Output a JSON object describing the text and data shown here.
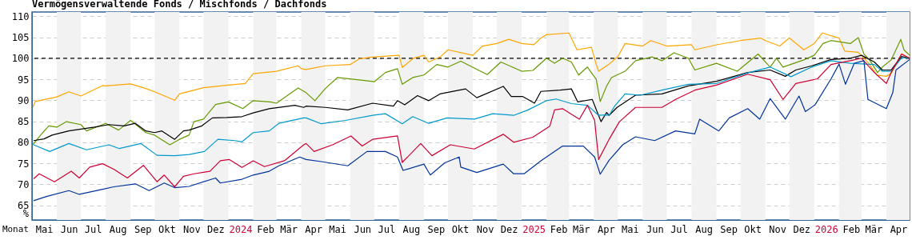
{
  "chart_data": {
    "type": "line",
    "title": "Vermögensverwaltende Fonds / Mischfonds / Dachfonds",
    "xlabel": "Monat",
    "ylabel": "%",
    "xlim": [
      "2023-05-01",
      "2026-04-30"
    ],
    "ylim": [
      61.5,
      111
    ],
    "yticks": [
      65,
      70,
      75,
      80,
      85,
      90,
      95,
      100,
      105,
      110
    ],
    "xticks": [
      {
        "value": "2023-05-16",
        "label": "Mai"
      },
      {
        "value": "2023-06-16",
        "label": "Jun"
      },
      {
        "value": "2023-07-16",
        "label": "Jul"
      },
      {
        "value": "2023-08-16",
        "label": "Aug"
      },
      {
        "value": "2023-09-16",
        "label": "Sep"
      },
      {
        "value": "2023-10-16",
        "label": "Okt"
      },
      {
        "value": "2023-11-16",
        "label": "Nov"
      },
      {
        "value": "2023-12-16",
        "label": "Dez"
      },
      {
        "value": "2024-01-16",
        "label": "2024"
      },
      {
        "value": "2024-02-16",
        "label": "Feb"
      },
      {
        "value": "2024-03-16",
        "label": "Mär"
      },
      {
        "value": "2024-04-16",
        "label": "Apr"
      },
      {
        "value": "2024-05-16",
        "label": "Mai"
      },
      {
        "value": "2024-06-16",
        "label": "Jun"
      },
      {
        "value": "2024-07-16",
        "label": "Jul"
      },
      {
        "value": "2024-08-16",
        "label": "Aug"
      },
      {
        "value": "2024-09-16",
        "label": "Sep"
      },
      {
        "value": "2024-10-16",
        "label": "Okt"
      },
      {
        "value": "2024-11-16",
        "label": "Nov"
      },
      {
        "value": "2024-12-16",
        "label": "Dez"
      },
      {
        "value": "2025-01-16",
        "label": "2025"
      },
      {
        "value": "2025-02-16",
        "label": "Feb"
      },
      {
        "value": "2025-03-16",
        "label": "Mär"
      },
      {
        "value": "2025-04-16",
        "label": "Apr"
      },
      {
        "value": "2025-05-16",
        "label": "Mai"
      },
      {
        "value": "2025-06-16",
        "label": "Jun"
      },
      {
        "value": "2025-07-16",
        "label": "Jul"
      },
      {
        "value": "2025-08-16",
        "label": "Aug"
      },
      {
        "value": "2025-09-16",
        "label": "Sep"
      },
      {
        "value": "2025-10-16",
        "label": "Okt"
      },
      {
        "value": "2025-11-16",
        "label": "Nov"
      },
      {
        "value": "2025-12-16",
        "label": "Dez"
      },
      {
        "value": "2026-01-16",
        "label": "2026"
      },
      {
        "value": "2026-02-16",
        "label": "Feb"
      },
      {
        "value": "2026-03-16",
        "label": "Mär"
      },
      {
        "value": "2026-04-16",
        "label": "Apr"
      }
    ],
    "grid": "y",
    "legend": false,
    "marker": "none",
    "line_style": "solid",
    "ref_lines": [
      {
        "axis": "y",
        "value": 100,
        "color": "#000000",
        "line_style": "dashed"
      }
    ],
    "bands": [
      {
        "axis": "x",
        "from": "2023-06-01",
        "to": "2023-07-01",
        "color": "#f2f2f2"
      },
      {
        "axis": "x",
        "from": "2023-08-01",
        "to": "2023-09-01",
        "color": "#f2f2f2"
      },
      {
        "axis": "x",
        "from": "2023-10-01",
        "to": "2023-11-01",
        "color": "#f2f2f2"
      },
      {
        "axis": "x",
        "from": "2023-12-01",
        "to": "2024-01-01",
        "color": "#f2f2f2"
      },
      {
        "axis": "x",
        "from": "2024-02-01",
        "to": "2024-03-01",
        "color": "#f2f2f2"
      },
      {
        "axis": "x",
        "from": "2024-04-01",
        "to": "2024-05-01",
        "color": "#f2f2f2"
      },
      {
        "axis": "x",
        "from": "2024-06-01",
        "to": "2024-07-01",
        "color": "#f2f2f2"
      },
      {
        "axis": "x",
        "from": "2024-08-01",
        "to": "2024-09-01",
        "color": "#f2f2f2"
      },
      {
        "axis": "x",
        "from": "2024-10-01",
        "to": "2024-11-01",
        "color": "#f2f2f2"
      },
      {
        "axis": "x",
        "from": "2024-12-01",
        "to": "2025-01-01",
        "color": "#f2f2f2"
      },
      {
        "axis": "x",
        "from": "2025-02-01",
        "to": "2025-03-01",
        "color": "#f2f2f2"
      },
      {
        "axis": "x",
        "from": "2025-04-01",
        "to": "2025-05-01",
        "color": "#f2f2f2"
      },
      {
        "axis": "x",
        "from": "2025-06-01",
        "to": "2025-07-01",
        "color": "#f2f2f2"
      },
      {
        "axis": "x",
        "from": "2025-08-01",
        "to": "2025-09-01",
        "color": "#f2f2f2"
      },
      {
        "axis": "x",
        "from": "2025-10-01",
        "to": "2025-11-01",
        "color": "#f2f2f2"
      },
      {
        "axis": "x",
        "from": "2025-12-01",
        "to": "2026-01-01",
        "color": "#f2f2f2"
      },
      {
        "axis": "x",
        "from": "2026-02-01",
        "to": "2026-03-01",
        "color": "#f2f2f2"
      },
      {
        "axis": "x",
        "from": "2026-04-01",
        "to": "2026-04-30",
        "color": "#f2f2f2"
      }
    ],
    "series": [
      {
        "color": "#ffa500",
        "x": [
          "2023-05-02",
          "2023-05-05",
          "2023-06-01",
          "2023-06-16",
          "2023-07-01",
          "2023-07-28",
          "2023-08-01",
          "2023-09-01",
          "2023-09-20",
          "2023-10-01",
          "2023-10-26",
          "2023-11-01",
          "2023-12-01",
          "2024-01-01",
          "2024-01-22",
          "2024-02-01",
          "2024-03-01",
          "2024-03-28",
          "2024-04-01",
          "2024-04-07",
          "2024-05-01",
          "2024-06-01",
          "2024-06-13",
          "2024-07-01",
          "2024-08-01",
          "2024-08-05",
          "2024-08-19",
          "2024-09-01",
          "2024-09-07",
          "2024-09-22",
          "2024-10-01",
          "2024-11-01",
          "2024-11-13",
          "2024-12-01",
          "2024-12-16",
          "2025-01-01",
          "2025-01-16",
          "2025-01-25",
          "2025-02-01",
          "2025-03-01",
          "2025-03-11",
          "2025-03-29",
          "2025-04-04",
          "2025-04-07",
          "2025-04-20",
          "2025-05-01",
          "2025-05-10",
          "2025-06-01",
          "2025-06-11",
          "2025-07-01",
          "2025-08-01",
          "2025-08-05",
          "2025-09-01",
          "2025-10-01",
          "2025-10-26",
          "2025-11-01",
          "2025-11-19",
          "2025-12-01",
          "2025-12-19",
          "2026-01-01",
          "2026-01-11",
          "2026-02-01",
          "2026-02-08",
          "2026-02-25",
          "2026-03-10",
          "2026-03-20",
          "2026-04-01",
          "2026-04-07",
          "2026-04-20",
          "2026-04-30"
        ],
        "values": [
          88.3,
          89.7,
          90.8,
          92,
          91,
          93.5,
          93.4,
          93.9,
          92.8,
          92,
          90,
          91.5,
          93,
          93.6,
          94,
          96.3,
          96.9,
          98.2,
          97.5,
          97.3,
          98.2,
          98.5,
          99.9,
          100.3,
          100.7,
          97.8,
          100,
          100.7,
          99.1,
          100.4,
          102,
          100.7,
          102.9,
          103.5,
          104.5,
          103.5,
          103.2,
          104.8,
          105.6,
          106,
          102,
          102.6,
          98.5,
          96.9,
          98.6,
          100.4,
          103.5,
          102.9,
          104.2,
          102.9,
          103.2,
          102,
          103.2,
          104.2,
          104.8,
          104.2,
          102.9,
          104.8,
          102,
          103.5,
          106,
          104.8,
          101.7,
          101.4,
          98.8,
          96,
          95.7,
          96.4,
          101,
          100
        ]
      },
      {
        "color": "#669900",
        "x": [
          "2023-05-02",
          "2023-05-13",
          "2023-05-22",
          "2023-06-01",
          "2023-06-13",
          "2023-07-01",
          "2023-07-08",
          "2023-08-01",
          "2023-08-17",
          "2023-09-01",
          "2023-09-20",
          "2023-10-01",
          "2023-10-20",
          "2023-11-01",
          "2023-11-13",
          "2023-11-19",
          "2023-12-01",
          "2023-12-16",
          "2024-01-01",
          "2024-01-19",
          "2024-02-01",
          "2024-02-22",
          "2024-03-01",
          "2024-03-28",
          "2024-04-07",
          "2024-04-18",
          "2024-05-01",
          "2024-05-16",
          "2024-06-19",
          "2024-07-01",
          "2024-07-15",
          "2024-07-30",
          "2024-08-05",
          "2024-08-18",
          "2024-09-01",
          "2024-09-17",
          "2024-10-01",
          "2024-10-17",
          "2024-11-19",
          "2024-12-06",
          "2025-01-01",
          "2025-01-15",
          "2025-02-01",
          "2025-02-11",
          "2025-02-21",
          "2025-03-04",
          "2025-03-13",
          "2025-03-24",
          "2025-04-04",
          "2025-04-09",
          "2025-04-17",
          "2025-04-23",
          "2025-05-10",
          "2025-05-23",
          "2025-06-13",
          "2025-06-25",
          "2025-07-10",
          "2025-07-28",
          "2025-08-05",
          "2025-09-01",
          "2025-09-27",
          "2025-10-23",
          "2025-11-07",
          "2025-11-15",
          "2025-11-23",
          "2025-12-19",
          "2026-01-01",
          "2026-01-12",
          "2026-01-22",
          "2026-02-15",
          "2026-02-25",
          "2026-03-04",
          "2026-03-11",
          "2026-03-21",
          "2026-03-27",
          "2026-04-07",
          "2026-04-19",
          "2026-04-23",
          "2026-04-30"
        ],
        "values": [
          79.4,
          82,
          83.9,
          83.6,
          84.9,
          84.2,
          82.7,
          84.5,
          82.9,
          85.2,
          82.3,
          81.7,
          79.4,
          80.7,
          81.7,
          84.9,
          85.5,
          89,
          89.6,
          88,
          89.9,
          89.6,
          89.3,
          92.9,
          91.8,
          89.9,
          92.8,
          95.4,
          94.7,
          94.4,
          96.6,
          97.5,
          93.8,
          95.4,
          96,
          98.5,
          97.9,
          99.3,
          96.1,
          99.1,
          96.9,
          97.1,
          100,
          98.8,
          100,
          99.1,
          96,
          97.9,
          95,
          89.7,
          93.4,
          95.4,
          96.9,
          99.4,
          100.3,
          99.4,
          101.3,
          100,
          97.2,
          98.8,
          96.9,
          101,
          97.9,
          100,
          97.9,
          99.6,
          100.7,
          103.5,
          104.2,
          103.5,
          104.9,
          101,
          99.6,
          96.6,
          97.9,
          99.6,
          104.5,
          102,
          100.7
        ]
      },
      {
        "color": "#000000",
        "x": [
          "2023-05-03",
          "2023-05-16",
          "2023-05-26",
          "2023-06-16",
          "2023-07-18",
          "2023-08-05",
          "2023-08-24",
          "2023-09-07",
          "2023-09-20",
          "2023-10-01",
          "2023-10-10",
          "2023-10-26",
          "2023-11-06",
          "2023-11-13",
          "2023-11-29",
          "2023-12-12",
          "2023-12-30",
          "2024-01-18",
          "2024-02-01",
          "2024-02-21",
          "2024-03-24",
          "2024-04-04",
          "2024-04-07",
          "2024-05-01",
          "2024-05-29",
          "2024-06-29",
          "2024-07-25",
          "2024-07-30",
          "2024-08-08",
          "2024-08-24",
          "2024-09-07",
          "2024-09-21",
          "2024-10-23",
          "2024-11-06",
          "2024-12-09",
          "2024-12-19",
          "2025-01-02",
          "2025-01-17",
          "2025-01-25",
          "2025-02-18",
          "2025-03-04",
          "2025-03-12",
          "2025-03-30",
          "2025-04-10",
          "2025-04-17",
          "2025-04-20",
          "2025-04-30",
          "2025-05-23",
          "2025-06-25",
          "2025-07-28",
          "2025-09-01",
          "2025-10-10",
          "2025-11-07",
          "2025-11-26",
          "2025-12-09",
          "2025-12-29",
          "2026-01-22",
          "2026-02-15",
          "2026-03-01",
          "2026-03-17",
          "2026-03-27",
          "2026-04-07",
          "2026-04-20",
          "2026-04-30"
        ],
        "values": [
          80.4,
          80.8,
          81.7,
          82.7,
          83.6,
          84.2,
          83.9,
          84.5,
          82.7,
          82.3,
          82.7,
          80.7,
          82.7,
          82.9,
          83.9,
          85.8,
          85.9,
          86.1,
          87,
          88,
          88.8,
          88.3,
          88.6,
          88.3,
          87.7,
          89.3,
          88.6,
          89.9,
          88.9,
          91.1,
          89.9,
          91.5,
          92.7,
          90.6,
          93.3,
          90.9,
          90.9,
          89.3,
          92.1,
          92.4,
          92.7,
          89.6,
          90.2,
          84.9,
          87.1,
          86.4,
          88.3,
          91.2,
          91.5,
          93.4,
          94.5,
          96.6,
          97.2,
          95.7,
          97.2,
          98.2,
          99.7,
          100,
          100.7,
          99.1,
          97.2,
          97.2,
          100.4,
          100
        ]
      },
      {
        "color": "#0099cc",
        "x": [
          "2023-05-03",
          "2023-05-23",
          "2023-06-16",
          "2023-07-08",
          "2023-08-05",
          "2023-08-18",
          "2023-09-14",
          "2023-10-04",
          "2023-10-26",
          "2023-11-13",
          "2023-12-02",
          "2023-12-19",
          "2024-01-09",
          "2024-01-18",
          "2024-02-01",
          "2024-02-21",
          "2024-03-04",
          "2024-04-04",
          "2024-04-07",
          "2024-04-26",
          "2024-05-26",
          "2024-06-29",
          "2024-07-15",
          "2024-08-05",
          "2024-08-18",
          "2024-09-07",
          "2024-09-30",
          "2024-11-03",
          "2024-11-26",
          "2024-12-22",
          "2025-01-09",
          "2025-02-01",
          "2025-02-13",
          "2025-03-04",
          "2025-03-24",
          "2025-04-07",
          "2025-04-17",
          "2025-04-20",
          "2025-04-27",
          "2025-05-10",
          "2025-05-29",
          "2025-06-25",
          "2025-07-28",
          "2025-09-01",
          "2025-10-10",
          "2025-11-07",
          "2025-12-03",
          "2025-12-29",
          "2026-01-22",
          "2026-02-15",
          "2026-03-17",
          "2026-03-27",
          "2026-04-07",
          "2026-04-20",
          "2026-04-30"
        ],
        "values": [
          79.4,
          77.8,
          79.7,
          78.2,
          79.4,
          78.5,
          79.7,
          76.9,
          76.8,
          77.1,
          77.8,
          80.7,
          80.4,
          80.1,
          82.3,
          82.7,
          84.5,
          85.8,
          85.8,
          84.4,
          85.2,
          86.4,
          86.8,
          84.4,
          86.1,
          84.5,
          85.8,
          85.5,
          86.8,
          86.4,
          87.7,
          89.9,
          90.3,
          89.2,
          88.8,
          86.4,
          86.5,
          86.4,
          88.6,
          91.5,
          91.2,
          92.4,
          93.8,
          94,
          96.5,
          97.9,
          95.6,
          97.9,
          99.4,
          98.8,
          98.5,
          96.9,
          96.9,
          100.1,
          100.1
        ]
      },
      {
        "color": "#cc0033",
        "x": [
          "2023-05-03",
          "2023-05-10",
          "2023-05-29",
          "2023-06-19",
          "2023-06-29",
          "2023-07-12",
          "2023-07-28",
          "2023-08-11",
          "2023-08-28",
          "2023-09-17",
          "2023-10-04",
          "2023-10-13",
          "2023-10-26",
          "2023-11-06",
          "2023-11-19",
          "2023-12-09",
          "2023-12-22",
          "2024-01-02",
          "2024-01-18",
          "2024-02-01",
          "2024-02-15",
          "2024-03-11",
          "2024-04-04",
          "2024-04-07",
          "2024-04-17",
          "2024-05-10",
          "2024-06-02",
          "2024-06-16",
          "2024-06-29",
          "2024-07-30",
          "2024-08-05",
          "2024-08-28",
          "2024-09-11",
          "2024-10-04",
          "2024-11-03",
          "2024-12-09",
          "2024-12-22",
          "2025-01-15",
          "2025-02-05",
          "2025-02-11",
          "2025-02-21",
          "2025-03-04",
          "2025-03-14",
          "2025-03-24",
          "2025-04-02",
          "2025-04-07",
          "2025-04-20",
          "2025-05-03",
          "2025-05-23",
          "2025-06-25",
          "2025-07-12",
          "2025-08-05",
          "2025-09-01",
          "2025-10-10",
          "2025-11-07",
          "2025-11-23",
          "2025-12-09",
          "2026-01-05",
          "2026-01-22",
          "2026-02-15",
          "2026-03-01",
          "2026-03-17",
          "2026-04-01",
          "2026-04-07",
          "2026-04-20",
          "2026-04-30"
        ],
        "values": [
          71.3,
          72.5,
          70.6,
          73.1,
          71.5,
          74.1,
          74.9,
          73.6,
          71.5,
          74.5,
          70.6,
          72.2,
          69.4,
          71.9,
          72.5,
          73.1,
          75.6,
          75.9,
          74,
          75.6,
          74.2,
          75.6,
          79.4,
          79.7,
          77.8,
          79.4,
          81.5,
          79.1,
          80.7,
          81.5,
          75.2,
          79.7,
          76.8,
          79.4,
          78.4,
          81.9,
          80,
          81.2,
          83.8,
          87.7,
          88,
          86.7,
          85.5,
          88.8,
          85.2,
          75.9,
          80.7,
          84.9,
          88.3,
          88.3,
          90.2,
          92.4,
          93.6,
          96.2,
          94.9,
          90.2,
          94,
          95.1,
          98.5,
          99.4,
          100,
          96.6,
          94,
          96.6,
          101,
          100
        ]
      },
      {
        "color": "#003399",
        "x": [
          "2023-05-03",
          "2023-05-19",
          "2023-06-16",
          "2023-06-29",
          "2023-07-28",
          "2023-08-11",
          "2023-09-07",
          "2023-09-24",
          "2023-10-13",
          "2023-10-26",
          "2023-11-13",
          "2023-12-16",
          "2023-12-22",
          "2024-01-18",
          "2024-02-01",
          "2024-02-21",
          "2024-03-04",
          "2024-03-30",
          "2024-04-07",
          "2024-04-26",
          "2024-05-29",
          "2024-06-22",
          "2024-07-15",
          "2024-07-30",
          "2024-08-06",
          "2024-09-01",
          "2024-09-09",
          "2024-09-27",
          "2024-10-15",
          "2024-10-17",
          "2024-11-06",
          "2024-12-09",
          "2024-12-22",
          "2025-01-04",
          "2025-01-25",
          "2025-02-21",
          "2025-03-19",
          "2025-04-02",
          "2025-04-09",
          "2025-04-20",
          "2025-05-07",
          "2025-05-23",
          "2025-06-16",
          "2025-07-12",
          "2025-08-05",
          "2025-08-11",
          "2025-09-04",
          "2025-09-17",
          "2025-10-10",
          "2025-10-25",
          "2025-11-07",
          "2025-11-26",
          "2025-12-13",
          "2025-12-21",
          "2026-01-02",
          "2026-01-22",
          "2026-02-01",
          "2026-02-09",
          "2026-02-20",
          "2026-03-04",
          "2026-03-09",
          "2026-04-01",
          "2026-04-09",
          "2026-04-13",
          "2026-04-30"
        ],
        "values": [
          66.1,
          67.1,
          68.5,
          67.6,
          68.8,
          69.4,
          70.1,
          68.5,
          70.3,
          69.2,
          69.5,
          71.5,
          70.3,
          71.2,
          72.2,
          73.1,
          74.4,
          76.5,
          75.9,
          75.4,
          74.4,
          77.8,
          77.8,
          76.5,
          73.3,
          74.8,
          72.2,
          75.1,
          76.5,
          74.1,
          72.8,
          74.8,
          72.5,
          72.5,
          75.6,
          79.1,
          79.1,
          76.5,
          72.4,
          75.7,
          79.4,
          81.3,
          80.4,
          82.7,
          82,
          85.5,
          82.7,
          85.8,
          88,
          85.5,
          90.4,
          85.5,
          91,
          87.3,
          88.9,
          95.1,
          98.6,
          93.8,
          98.8,
          99.4,
          90.2,
          88,
          91.8,
          97.2,
          99.7
        ]
      }
    ]
  }
}
